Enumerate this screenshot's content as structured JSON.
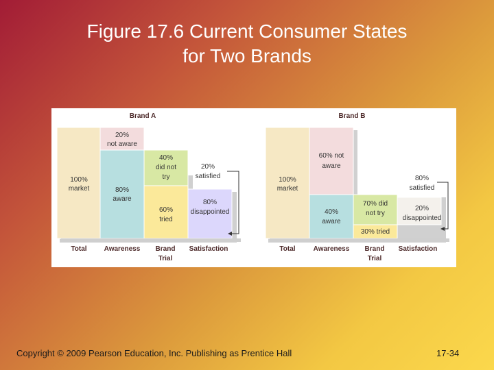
{
  "slide": {
    "title_line1": "Figure 17.6 Current Consumer States",
    "title_line2": "for Two Brands",
    "copyright": "Copyright © 2009 Pearson Education, Inc. Publishing as Prentice Hall",
    "page_number": "17-34"
  },
  "axis_labels": {
    "total": "Total",
    "awareness": "Awareness",
    "brand": "Brand",
    "trial": "Trial",
    "satisfaction": "Satisfaction"
  },
  "colors": {
    "total": "#f6e8c4",
    "not_aware": "#f3dcdd",
    "aware": "#b7dfe0",
    "did_not_try": "#d8e8a4",
    "tried": "#fbe99a",
    "satisfied": "#f4f1ec",
    "disappointed": "#dcd7fc"
  },
  "brand_a": {
    "name": "Brand A",
    "total_pct": "100%",
    "total_word": "market",
    "not_aware_pct": "20%",
    "not_aware_word": "not aware",
    "aware_pct": "80%",
    "aware_word": "aware",
    "did_not_try_pct": "40%",
    "did_not_try_line1": "did not",
    "did_not_try_line2": "try",
    "tried_pct": "60%",
    "tried_word": "tried",
    "satisfied_pct": "20%",
    "satisfied_word": "satisfied",
    "disappointed_pct": "80%",
    "disappointed_word": "disappointed"
  },
  "brand_b": {
    "name": "Brand B",
    "total_pct": "100%",
    "total_word": "market",
    "not_aware_line1": "60% not",
    "not_aware_line2": "aware",
    "aware_pct": "40%",
    "aware_word": "aware",
    "did_not_try_line1": "70% did",
    "did_not_try_line2": "not try",
    "tried_label": "30% tried",
    "satisfied_pct": "80%",
    "satisfied_word": "satisfied",
    "disappointed_pct": "20%",
    "disappointed_word": "disappointed"
  }
}
